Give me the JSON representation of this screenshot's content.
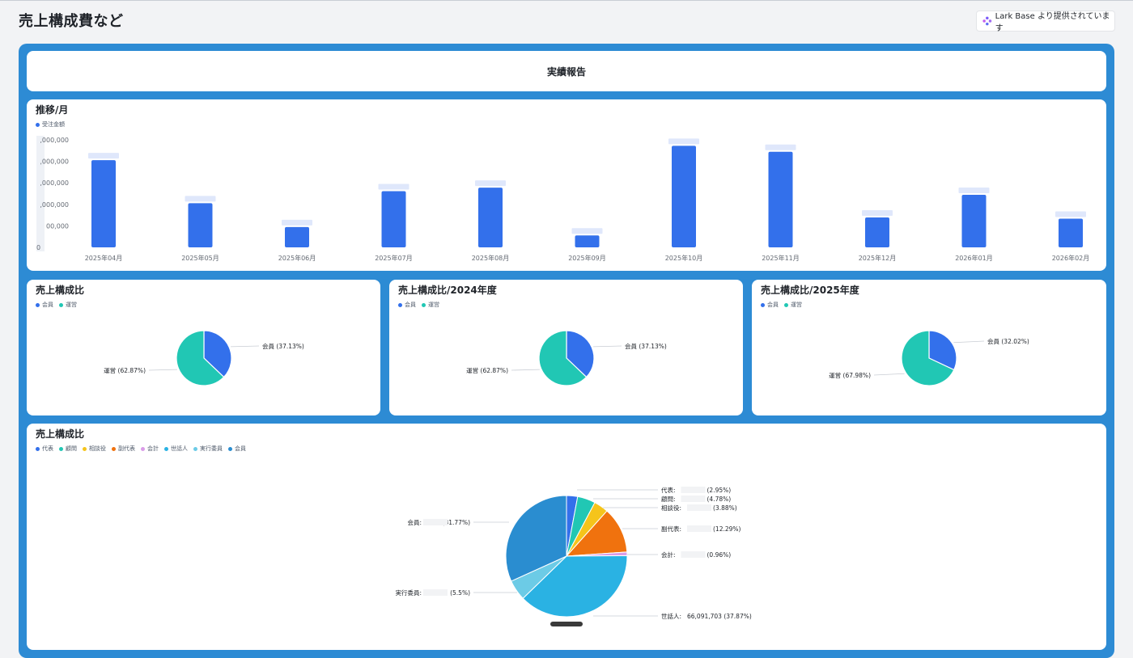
{
  "header": {
    "title": "売上構成費など",
    "provider_label": "Lark Base より提供されています"
  },
  "report_card": {
    "title": "実績報告"
  },
  "monthly_chart": {
    "title": "推移/月",
    "legend": "受注金額",
    "color": "#3370eb",
    "y_ticks": [
      "0",
      "00,000",
      ",000,000",
      ",000,000",
      ",000,000",
      ",000,000"
    ]
  },
  "pie_small": [
    {
      "title": "売上構成比",
      "legend": [
        "会員",
        "運営"
      ],
      "labels": [
        "会員 (37.13%)",
        "運営 (62.87%)"
      ]
    },
    {
      "title": "売上構成比/2024年度",
      "legend": [
        "会員",
        "運営"
      ],
      "labels": [
        "会員 (37.13%)",
        "運営 (62.87%)"
      ]
    },
    {
      "title": "売上構成比/2025年度",
      "legend": [
        "会員",
        "運営"
      ],
      "labels": [
        "会員 (32.02%)",
        "運営 (67.98%)"
      ]
    }
  ],
  "pie_big": {
    "title": "売上構成比",
    "legend": [
      "代表",
      "顧問",
      "相談役",
      "副代表",
      "会計",
      "世話人",
      "実行委員",
      "会員"
    ],
    "labels": [
      {
        "name": "代表:",
        "pct": "(2.95%)"
      },
      {
        "name": "顧問:",
        "pct": "(4.78%)"
      },
      {
        "name": "相談役:",
        "pct": "(3.88%)"
      },
      {
        "name": "副代表:",
        "pct": "(12.29%)"
      },
      {
        "name": "会計:",
        "pct": "(0.96%)"
      },
      {
        "name": "世話人:",
        "pct": "66,091,703 (37.87%)"
      },
      {
        "name": "実行委員:",
        "pct": "(5.5%)"
      },
      {
        "name": "会員:",
        "pct": "(31.77%)"
      }
    ]
  },
  "colors": {
    "frame": "#2d8bd4",
    "bar": "#3370eb",
    "pie_member": "#3370eb",
    "pie_ops": "#21c7b4",
    "big_pie": [
      "#3370eb",
      "#21c7b4",
      "#f5c41b",
      "#f0720e",
      "#da9ce8",
      "#2ab2e3",
      "#6ccbe6",
      "#2a8dd0"
    ]
  },
  "chart_data": [
    {
      "type": "bar",
      "title": "推移/月",
      "series": [
        {
          "name": "受注金額",
          "values": [
            0.73,
            0.37,
            0.17,
            0.47,
            0.5,
            0.1,
            0.85,
            0.8,
            0.25,
            0.44,
            0.24
          ]
        }
      ],
      "categories": [
        "2025年04月",
        "2025年05月",
        "2025年06月",
        "2025年07月",
        "2025年08月",
        "2025年09月",
        "2025年10月",
        "2025年11月",
        "2025年12月",
        "2026年01月",
        "2026年02月"
      ]
    },
    {
      "type": "pie",
      "title": "売上構成比",
      "categories": [
        "会員",
        "運営"
      ],
      "values": [
        37.13,
        62.87
      ]
    },
    {
      "type": "pie",
      "title": "売上構成比/2024年度",
      "categories": [
        "会員",
        "運営"
      ],
      "values": [
        37.13,
        62.87
      ]
    },
    {
      "type": "pie",
      "title": "売上構成比/2025年度",
      "categories": [
        "会員",
        "運営"
      ],
      "values": [
        32.02,
        67.98
      ]
    },
    {
      "type": "pie",
      "title": "売上構成比",
      "categories": [
        "代表",
        "顧問",
        "相談役",
        "副代表",
        "会計",
        "世話人",
        "実行委員",
        "会員"
      ],
      "values": [
        2.95,
        4.78,
        3.88,
        12.29,
        0.96,
        37.87,
        5.5,
        31.77
      ]
    }
  ]
}
